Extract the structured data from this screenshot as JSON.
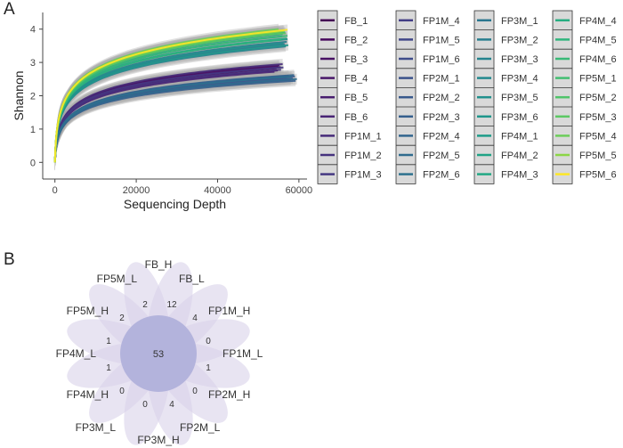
{
  "panels": {
    "a": "A",
    "b": "B"
  },
  "chart_data": [
    {
      "type": "line",
      "subtype": "rarefaction-curve",
      "xlabel": "Sequencing Depth",
      "ylabel": "Shannon",
      "xlim": [
        -3000,
        62000
      ],
      "ylim": [
        -0.5,
        4.5
      ],
      "xticks": [
        0,
        20000,
        40000,
        60000
      ],
      "yticks": [
        0,
        1,
        2,
        3,
        4
      ],
      "grid": false,
      "legend_position": "right",
      "legend_columns": [
        [
          "FB_1",
          "FB_2",
          "FB_3",
          "FB_4",
          "FB_5",
          "FB_6",
          "FP1M_1",
          "FP1M_2",
          "FP1M_3"
        ],
        [
          "FP1M_4",
          "FP1M_5",
          "FP1M_6",
          "FP2M_1",
          "FP2M_2",
          "FP2M_3",
          "FP2M_4",
          "FP2M_5",
          "FP2M_6"
        ],
        [
          "FP3M_1",
          "FP3M_2",
          "FP3M_3",
          "FP3M_4",
          "FP3M_5",
          "FP3M_6",
          "FP4M_1",
          "FP4M_2",
          "FP4M_3"
        ],
        [
          "FP4M_4",
          "FP4M_5",
          "FP4M_6",
          "FP5M_1",
          "FP5M_2",
          "FP5M_3",
          "FP5M_4",
          "FP5M_5",
          "FP5M_6"
        ]
      ],
      "colors": [
        "#440154",
        "#46085c",
        "#471063",
        "#481769",
        "#481d6f",
        "#482475",
        "#472c7a",
        "#46327e",
        "#453882",
        "#433e85",
        "#404688",
        "#3e4c8a",
        "#3b528b",
        "#38598c",
        "#355f8d",
        "#32658e",
        "#2f6b8e",
        "#2d718e",
        "#2a768e",
        "#277d8e",
        "#25838e",
        "#23898e",
        "#21908d",
        "#1f968b",
        "#1e9c89",
        "#20a386",
        "#22a884",
        "#27ad81",
        "#2fb47c",
        "#38b977",
        "#42be71",
        "#50c46a",
        "#5cc863",
        "#6ccd5a",
        "#8bd646",
        "#fde725"
      ],
      "series": [
        {
          "name": "FB_1",
          "max_depth": 54500,
          "final": 2.82
        },
        {
          "name": "FB_2",
          "max_depth": 55000,
          "final": 2.88
        },
        {
          "name": "FB_3",
          "max_depth": 55200,
          "final": 2.92
        },
        {
          "name": "FB_4",
          "max_depth": 54800,
          "final": 2.76
        },
        {
          "name": "FB_5",
          "max_depth": 55500,
          "final": 2.86
        },
        {
          "name": "FB_6",
          "max_depth": 54000,
          "final": 2.72
        },
        {
          "name": "FP1M_1",
          "max_depth": 56000,
          "final": 2.95
        },
        {
          "name": "FP1M_2",
          "max_depth": 55600,
          "final": 2.78
        },
        {
          "name": "FP1M_3",
          "max_depth": 56200,
          "final": 2.85
        },
        {
          "name": "FP1M_4",
          "max_depth": 57000,
          "final": 2.55
        },
        {
          "name": "FP1M_5",
          "max_depth": 57500,
          "final": 2.6
        },
        {
          "name": "FP1M_6",
          "max_depth": 58000,
          "final": 2.48
        },
        {
          "name": "FP2M_1",
          "max_depth": 58500,
          "final": 2.52
        },
        {
          "name": "FP2M_2",
          "max_depth": 59000,
          "final": 2.58
        },
        {
          "name": "FP2M_3",
          "max_depth": 59200,
          "final": 2.45
        },
        {
          "name": "FP2M_4",
          "max_depth": 58800,
          "final": 2.62
        },
        {
          "name": "FP2M_5",
          "max_depth": 59500,
          "final": 2.5
        },
        {
          "name": "FP2M_6",
          "max_depth": 58200,
          "final": 2.57
        },
        {
          "name": "FP3M_1",
          "max_depth": 56500,
          "final": 3.55
        },
        {
          "name": "FP3M_2",
          "max_depth": 57000,
          "final": 3.62
        },
        {
          "name": "FP3M_3",
          "max_depth": 56800,
          "final": 3.48
        },
        {
          "name": "FP3M_4",
          "max_depth": 57200,
          "final": 3.7
        },
        {
          "name": "FP3M_5",
          "max_depth": 56200,
          "final": 3.58
        },
        {
          "name": "FP3M_6",
          "max_depth": 57400,
          "final": 3.52
        },
        {
          "name": "FP4M_1",
          "max_depth": 55800,
          "final": 3.78
        },
        {
          "name": "FP4M_2",
          "max_depth": 56000,
          "final": 3.85
        },
        {
          "name": "FP4M_3",
          "max_depth": 57000,
          "final": 3.72
        },
        {
          "name": "FP4M_4",
          "max_depth": 56600,
          "final": 3.9
        },
        {
          "name": "FP4M_5",
          "max_depth": 55600,
          "final": 3.68
        },
        {
          "name": "FP4M_6",
          "max_depth": 57200,
          "final": 3.8
        },
        {
          "name": "FP5M_1",
          "max_depth": 55400,
          "final": 3.92
        },
        {
          "name": "FP5M_2",
          "max_depth": 56200,
          "final": 3.96
        },
        {
          "name": "FP5M_3",
          "max_depth": 56800,
          "final": 3.88
        },
        {
          "name": "FP5M_4",
          "max_depth": 55000,
          "final": 4.0
        },
        {
          "name": "FP5M_5",
          "max_depth": 56400,
          "final": 3.94
        },
        {
          "name": "FP5M_6",
          "max_depth": 57200,
          "final": 3.98
        }
      ]
    },
    {
      "type": "flower-venn",
      "center_value": "53",
      "center_color": "#b3b3dc",
      "petal_color": "#d9d2ea",
      "petals": [
        {
          "name": "FB_H",
          "value": "2"
        },
        {
          "name": "FB_L",
          "value": "12"
        },
        {
          "name": "FP1M_H",
          "value": "4"
        },
        {
          "name": "FP1M_L",
          "value": "0"
        },
        {
          "name": "FP2M_H",
          "value": "1"
        },
        {
          "name": "FP2M_L",
          "value": "0"
        },
        {
          "name": "FP3M_H",
          "value": "4"
        },
        {
          "name": "FP3M_L",
          "value": "0"
        },
        {
          "name": "FP4M_H",
          "value": "0"
        },
        {
          "name": "FP4M_L",
          "value": "1"
        },
        {
          "name": "FP5M_H",
          "value": "1"
        },
        {
          "name": "FP5M_L",
          "value": "2"
        }
      ]
    }
  ]
}
